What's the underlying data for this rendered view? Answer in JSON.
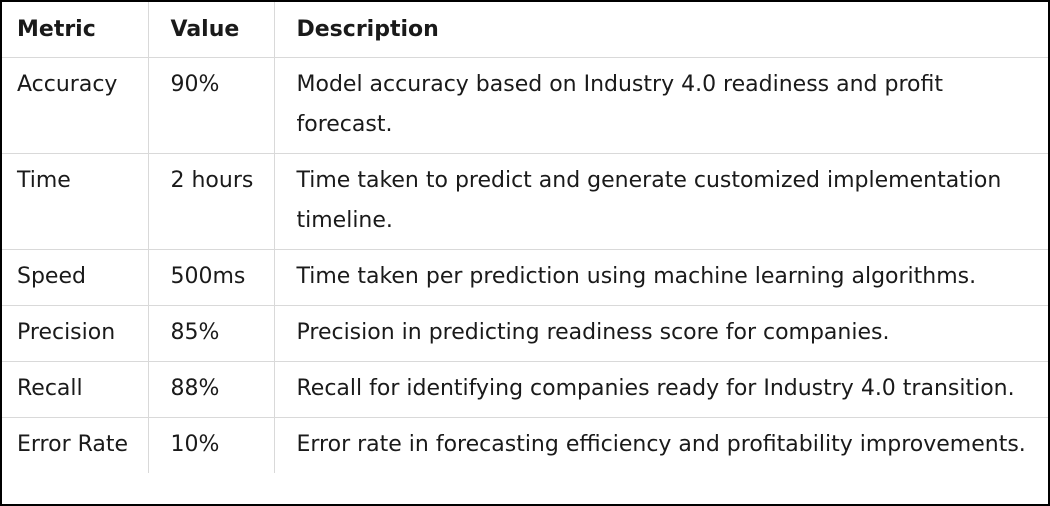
{
  "table": {
    "headers": [
      "Metric",
      "Value",
      "Description"
    ],
    "rows": [
      [
        "Accuracy",
        "90%",
        "Model accuracy based on Industry 4.0 readiness and profit forecast."
      ],
      [
        "Time",
        "2 hours",
        "Time taken to predict and generate customized implementation timeline."
      ],
      [
        "Speed",
        "500ms",
        "Time taken per prediction using machine learning algorithms."
      ],
      [
        "Precision",
        "85%",
        "Precision in predicting readiness score for companies."
      ],
      [
        "Recall",
        "88%",
        "Recall for identifying companies ready for Industry 4.0 transition."
      ],
      [
        "Error Rate",
        "10%",
        "Error rate in forecasting efficiency and profitability improvements."
      ]
    ]
  }
}
